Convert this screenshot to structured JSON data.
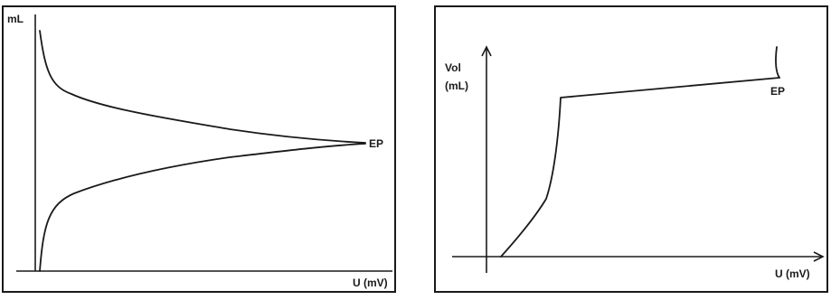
{
  "panels": [
    {
      "y_label": "mL",
      "x_label": "U (mV)",
      "annotation": "EP"
    },
    {
      "y_label_line1": "Vol",
      "y_label_line2": "(mL)",
      "x_label": "U (mV)",
      "annotation": "EP"
    }
  ]
}
